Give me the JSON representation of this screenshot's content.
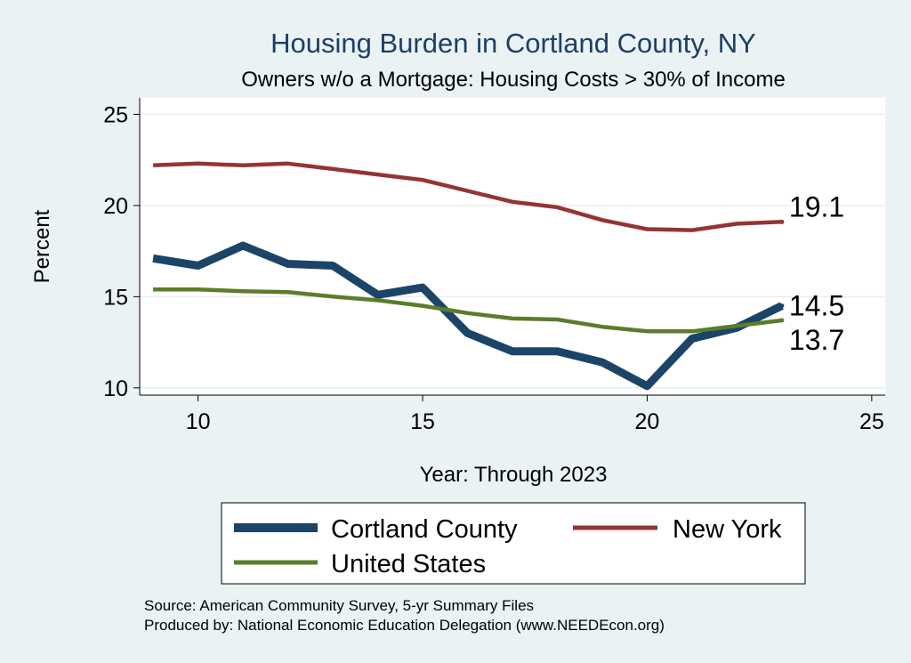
{
  "chart_data": {
    "type": "line",
    "title": "Housing Burden in Cortland County, NY",
    "subtitle": "Owners w/o a Mortgage: Housing Costs > 30% of Income",
    "xlabel": "Year: Through 2023",
    "ylabel": "Percent",
    "xlim": [
      8.7,
      25.3
    ],
    "ylim": [
      9.6,
      25.9
    ],
    "xticks": [
      10,
      15,
      20,
      25
    ],
    "yticks": [
      10,
      15,
      20,
      25
    ],
    "grid": "horizontal",
    "legend_position": "bottom",
    "x": [
      9,
      10,
      11,
      12,
      13,
      14,
      15,
      16,
      17,
      18,
      19,
      20,
      21,
      22,
      23
    ],
    "series": [
      {
        "name": "Cortland County",
        "color": "#1b4468",
        "values": [
          17.1,
          16.7,
          17.8,
          16.8,
          16.7,
          15.1,
          15.5,
          13.0,
          12.0,
          12.0,
          11.4,
          10.1,
          12.7,
          13.3,
          14.5
        ],
        "end_label": "14.5"
      },
      {
        "name": "New York",
        "color": "#943434",
        "values": [
          22.2,
          22.3,
          22.2,
          22.3,
          22.0,
          21.7,
          21.4,
          20.8,
          20.2,
          19.9,
          19.2,
          18.7,
          18.65,
          19.0,
          19.1
        ],
        "end_label": "19.1"
      },
      {
        "name": "United States",
        "color": "#5a7d2a",
        "values": [
          15.4,
          15.4,
          15.3,
          15.25,
          15.0,
          14.8,
          14.5,
          14.1,
          13.8,
          13.75,
          13.35,
          13.1,
          13.1,
          13.4,
          13.7
        ],
        "end_label": "13.7"
      }
    ],
    "source_lines": [
      "Source: American Community Survey, 5-yr Summary Files",
      "Produced by: National Economic Education Delegation (www.NEEDEcon.org)"
    ]
  }
}
